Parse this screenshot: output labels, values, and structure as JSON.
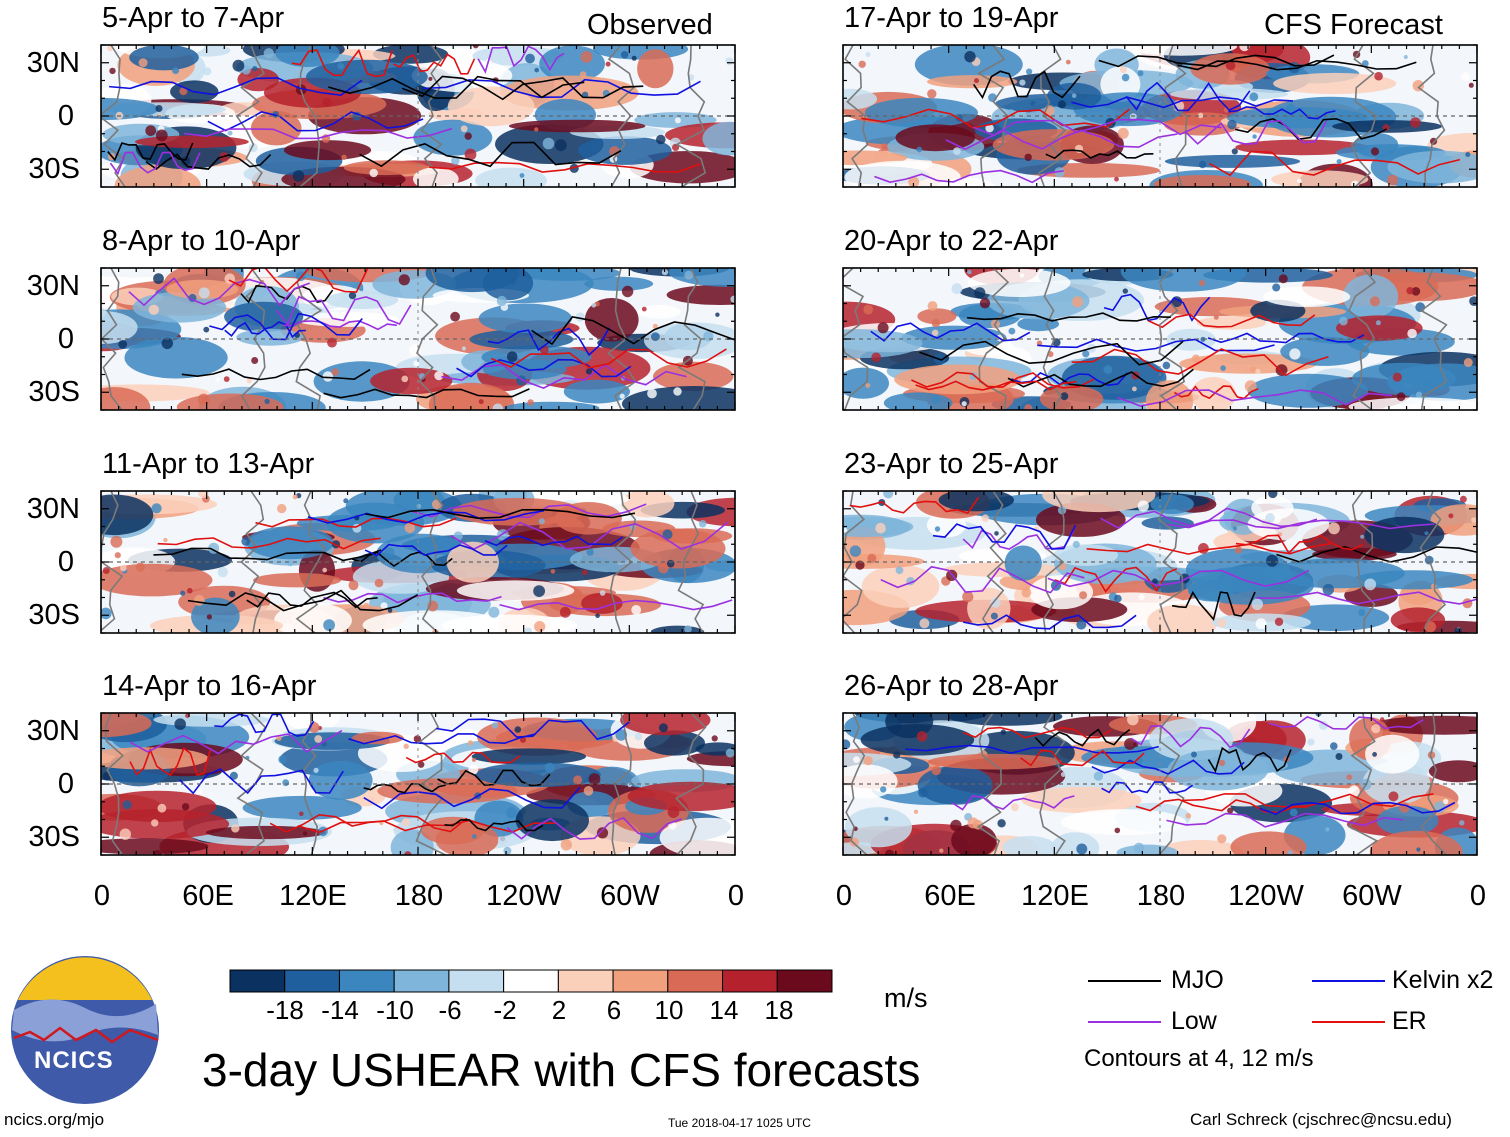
{
  "figure": {
    "main_title": "3-day USHEAR with CFS forecasts",
    "observed_label": "Observed",
    "forecast_label": "CFS Forecast",
    "logo_text": "NCICS",
    "footer_left": "ncics.org/mjo",
    "footer_center": "Tue 2018-04-17 1025 UTC",
    "footer_right": "Carl Schreck (cjschrec@ncsu.edu)",
    "units": "m/s",
    "contour_note": "Contours at 4, 12 m/s"
  },
  "chart_data": {
    "type": "heatmap",
    "panels_left": [
      {
        "title": "5-Apr to 7-Apr"
      },
      {
        "title": "8-Apr to 10-Apr"
      },
      {
        "title": "11-Apr to 13-Apr"
      },
      {
        "title": "14-Apr to 16-Apr"
      }
    ],
    "panels_right": [
      {
        "title": "17-Apr to 19-Apr"
      },
      {
        "title": "20-Apr to 22-Apr"
      },
      {
        "title": "23-Apr to 25-Apr"
      },
      {
        "title": "26-Apr to 28-Apr"
      }
    ],
    "x_ticks": [
      "0",
      "60E",
      "120E",
      "180",
      "120W",
      "60W",
      "0"
    ],
    "y_ticks": [
      "30N",
      "0",
      "30S"
    ],
    "x_range": [
      0,
      360
    ],
    "y_range": [
      -40,
      40
    ],
    "colorbar": {
      "labels": [
        "-18",
        "-14",
        "-10",
        "-6",
        "-2",
        "2",
        "6",
        "10",
        "14",
        "18"
      ],
      "colors": [
        "#0b3160",
        "#1f5f9e",
        "#3b86bf",
        "#7fb5da",
        "#c6dff0",
        "#ffffff",
        "#fbd0bb",
        "#f1a07e",
        "#d96b56",
        "#b5222d",
        "#6b0a1d"
      ]
    },
    "legend": [
      {
        "label": "MJO",
        "color": "#000000"
      },
      {
        "label": "Kelvin x2",
        "color": "#1010e0"
      },
      {
        "label": "Low",
        "color": "#9b30e0"
      },
      {
        "label": "ER",
        "color": "#e01010"
      }
    ]
  }
}
